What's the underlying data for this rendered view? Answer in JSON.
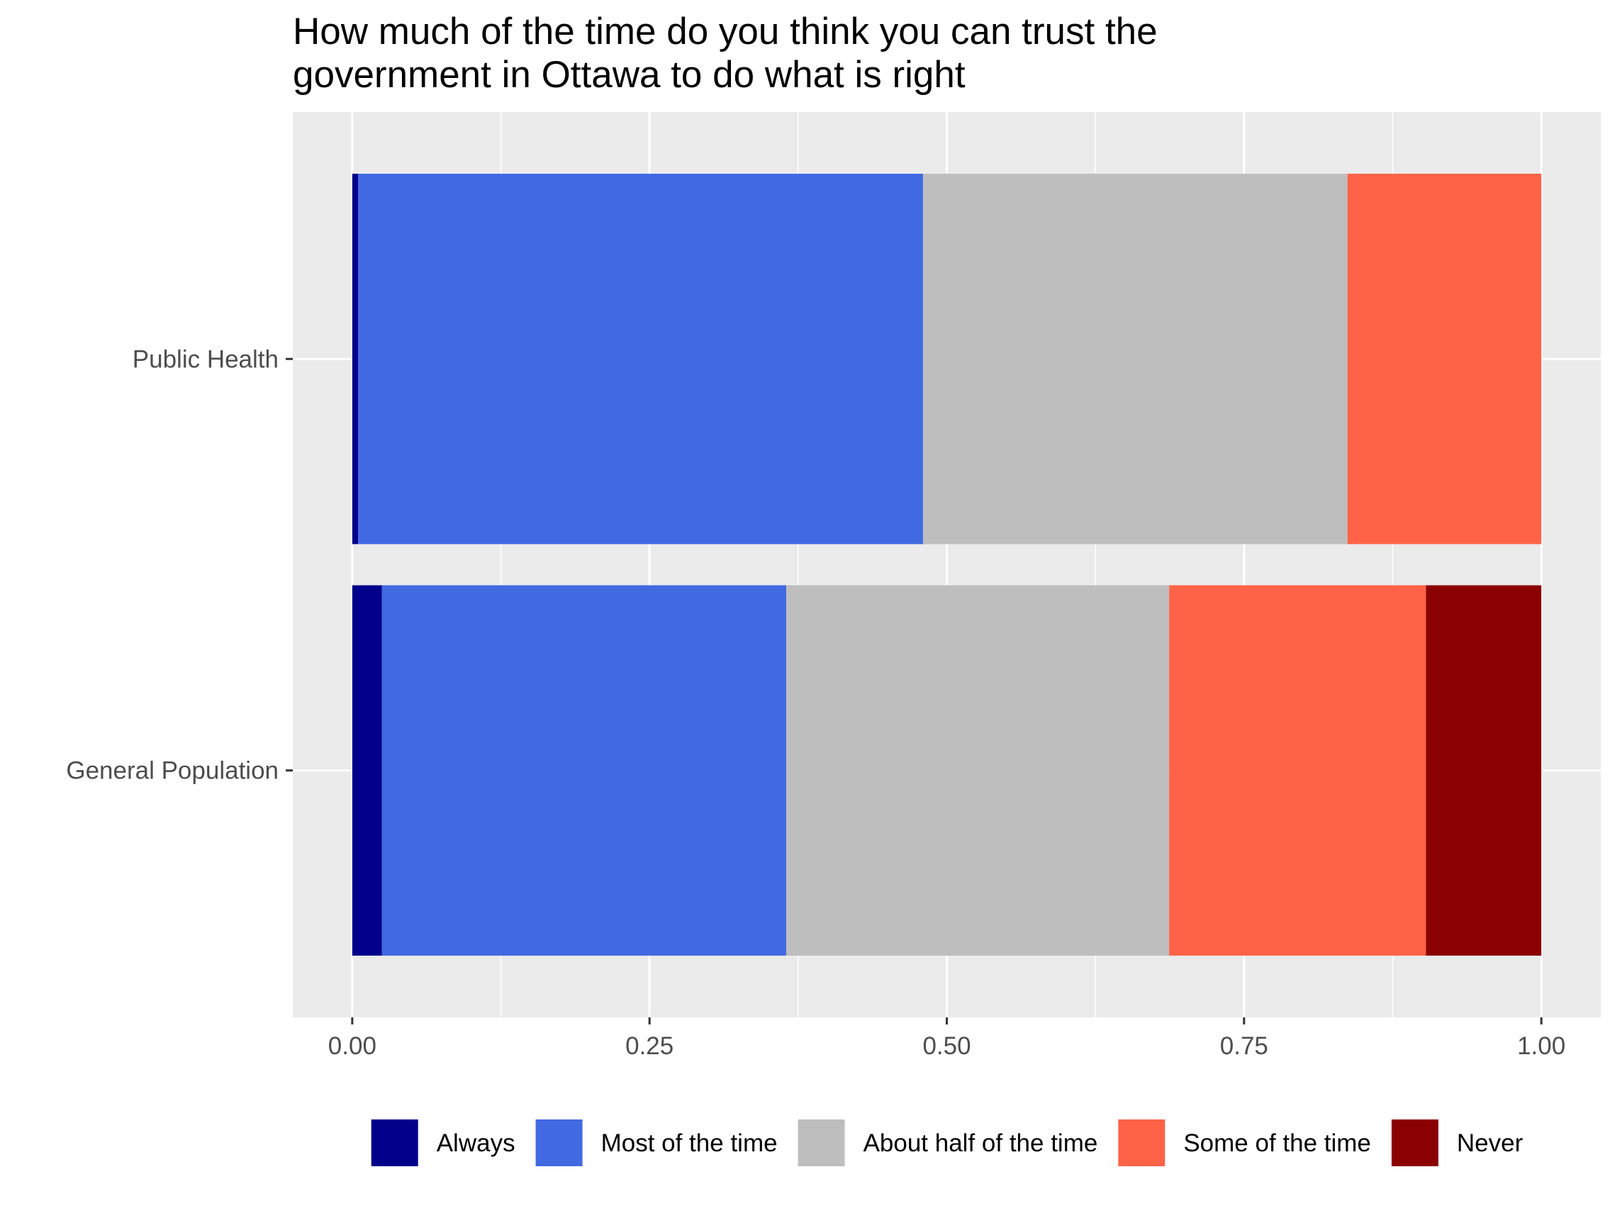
{
  "chart_data": {
    "type": "bar",
    "orientation": "horizontal",
    "stacked": true,
    "title_lines": [
      "How much of the time do you think you can trust the",
      "government in Ottawa to do what is right"
    ],
    "xlabel": "",
    "ylabel": "",
    "categories": [
      "Public Health",
      "General Population"
    ],
    "x_ticks": [
      "0.00",
      "0.25",
      "0.50",
      "0.75",
      "1.00"
    ],
    "xlim": [
      -0.05,
      1.05
    ],
    "grid": true,
    "legend_position": "bottom",
    "series": [
      {
        "name": "Always",
        "color": "#00008B",
        "values": [
          0.005,
          0.025
        ]
      },
      {
        "name": "Most of the time",
        "color": "#4169E1",
        "values": [
          0.475,
          0.34
        ]
      },
      {
        "name": "About half of the time",
        "color": "#BEBEBE",
        "values": [
          0.357,
          0.322
        ]
      },
      {
        "name": "Some of the time",
        "color": "#FF6347",
        "values": [
          0.163,
          0.216
        ]
      },
      {
        "name": "Never",
        "color": "#8B0000",
        "values": [
          0.0,
          0.097
        ]
      }
    ]
  }
}
